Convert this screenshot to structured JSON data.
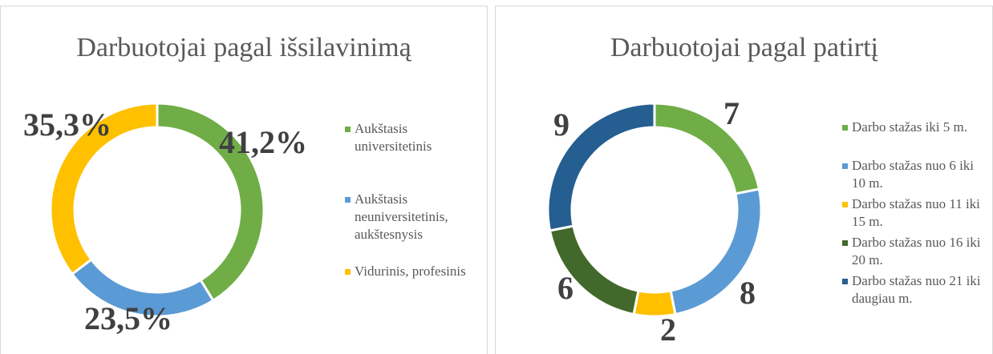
{
  "chart_data": [
    {
      "type": "donut",
      "title": "Darbuotojai pagal išsilavinimą",
      "categories": [
        "Aukštasis universitetinis",
        "Aukštasis neuniversitetinis, aukštesnysis",
        "Vidurinis, profesinis"
      ],
      "values": [
        41.2,
        23.5,
        35.3
      ],
      "value_labels": [
        "41,2%",
        "23,5%",
        "35,3%"
      ],
      "colors": [
        "#70ad47",
        "#5b9bd5",
        "#ffc000"
      ],
      "legend": "right"
    },
    {
      "type": "donut",
      "title": "Darbuotojai pagal patirtį",
      "categories": [
        "Darbo stažas iki  5 m.",
        "Darbo stažas nuo 6 iki 10 m.",
        "Darbo stažas nuo 11 iki 15 m.",
        "Darbo stažas nuo 16 iki 20 m.",
        "Darbo stažas nuo 21 iki daugiau m."
      ],
      "values": [
        7,
        8,
        2,
        6,
        9
      ],
      "colors": [
        "#70ad47",
        "#5b9bd5",
        "#ffc000",
        "#43682b",
        "#255e91"
      ],
      "legend": "right"
    }
  ]
}
